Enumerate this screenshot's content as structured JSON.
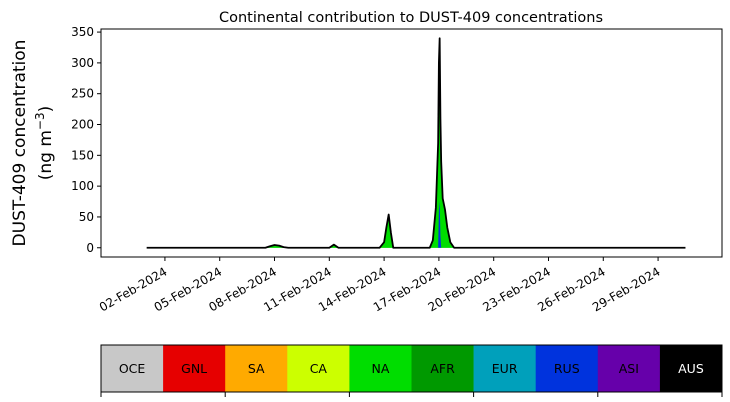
{
  "chart_data": {
    "type": "area",
    "title": "Continental contribution to DUST-409 concentrations",
    "ylabel_line1": "DUST-409 concentration",
    "ylabel_line2_prefix": "(ng m",
    "ylabel_line2_sup": "−3",
    "ylabel_line2_suffix": ")",
    "xlabel": "",
    "ylim": [
      -15,
      355
    ],
    "xlim": [
      "2024-01-29 12:00",
      "2024-03-03 12:00"
    ],
    "yticks": [
      0,
      50,
      100,
      150,
      200,
      250,
      300,
      350
    ],
    "xticks": [
      {
        "date": "2024-02-02",
        "label": "02-Feb-2024"
      },
      {
        "date": "2024-02-05",
        "label": "05-Feb-2024"
      },
      {
        "date": "2024-02-08",
        "label": "08-Feb-2024"
      },
      {
        "date": "2024-02-11",
        "label": "11-Feb-2024"
      },
      {
        "date": "2024-02-14",
        "label": "14-Feb-2024"
      },
      {
        "date": "2024-02-17",
        "label": "17-Feb-2024"
      },
      {
        "date": "2024-02-20",
        "label": "20-Feb-2024"
      },
      {
        "date": "2024-02-23",
        "label": "23-Feb-2024"
      },
      {
        "date": "2024-02-26",
        "label": "26-Feb-2024"
      },
      {
        "date": "2024-02-29",
        "label": "29-Feb-2024"
      }
    ],
    "series": [
      {
        "name": "AFR",
        "color": "#009900",
        "points": [
          [
            "2024-02-01 00:00",
            0
          ],
          [
            "2024-02-07 12:00",
            0
          ],
          [
            "2024-02-07 18:00",
            2
          ],
          [
            "2024-02-08 00:00",
            4
          ],
          [
            "2024-02-08 06:00",
            3
          ],
          [
            "2024-02-08 12:00",
            1
          ],
          [
            "2024-02-08 18:00",
            0
          ],
          [
            "2024-02-11 00:00",
            0
          ],
          [
            "2024-02-11 06:00",
            4
          ],
          [
            "2024-02-11 12:00",
            0
          ],
          [
            "2024-02-13 18:00",
            0
          ],
          [
            "2024-02-14 00:00",
            8
          ],
          [
            "2024-02-14 03:00",
            30
          ],
          [
            "2024-02-14 06:00",
            48
          ],
          [
            "2024-02-14 09:00",
            22
          ],
          [
            "2024-02-14 12:00",
            0
          ],
          [
            "2024-02-16 12:00",
            0
          ],
          [
            "2024-02-16 16:00",
            10
          ],
          [
            "2024-02-16 20:00",
            60
          ],
          [
            "2024-02-16 23:00",
            160
          ],
          [
            "2024-02-17 01:00",
            240
          ],
          [
            "2024-02-17 03:00",
            130
          ],
          [
            "2024-02-17 05:00",
            75
          ],
          [
            "2024-02-17 08:00",
            58
          ],
          [
            "2024-02-17 11:00",
            30
          ],
          [
            "2024-02-17 15:00",
            8
          ],
          [
            "2024-02-17 20:00",
            0
          ],
          [
            "2024-03-01 12:00",
            0
          ]
        ]
      },
      {
        "name": "NA",
        "color": "#00dd00",
        "points": [
          [
            "2024-02-01 00:00",
            0
          ],
          [
            "2024-02-07 12:00",
            0
          ],
          [
            "2024-02-07 18:00",
            2.5
          ],
          [
            "2024-02-08 00:00",
            4.5
          ],
          [
            "2024-02-08 06:00",
            3.5
          ],
          [
            "2024-02-08 12:00",
            1
          ],
          [
            "2024-02-08 18:00",
            0
          ],
          [
            "2024-02-11 00:00",
            0
          ],
          [
            "2024-02-11 06:00",
            5
          ],
          [
            "2024-02-11 12:00",
            0
          ],
          [
            "2024-02-13 18:00",
            0
          ],
          [
            "2024-02-14 00:00",
            9
          ],
          [
            "2024-02-14 03:00",
            33
          ],
          [
            "2024-02-14 06:00",
            52
          ],
          [
            "2024-02-14 09:00",
            24
          ],
          [
            "2024-02-14 12:00",
            0
          ],
          [
            "2024-02-16 12:00",
            0
          ],
          [
            "2024-02-16 16:00",
            12
          ],
          [
            "2024-02-16 20:00",
            65
          ],
          [
            "2024-02-16 23:00",
            170
          ],
          [
            "2024-02-17 01:00",
            255
          ],
          [
            "2024-02-17 03:00",
            140
          ],
          [
            "2024-02-17 05:00",
            80
          ],
          [
            "2024-02-17 08:00",
            62
          ],
          [
            "2024-02-17 11:00",
            33
          ],
          [
            "2024-02-17 15:00",
            9
          ],
          [
            "2024-02-17 20:00",
            0
          ],
          [
            "2024-03-01 12:00",
            0
          ]
        ]
      },
      {
        "name": "RUS",
        "color": "#0033dd",
        "points": [
          [
            "2024-02-01 00:00",
            0
          ],
          [
            "2024-02-16 23:00",
            0
          ],
          [
            "2024-02-17 00:00",
            60
          ],
          [
            "2024-02-17 01:00",
            75
          ],
          [
            "2024-02-17 02:00",
            20
          ],
          [
            "2024-02-17 03:00",
            0
          ],
          [
            "2024-03-01 12:00",
            0
          ]
        ]
      }
    ],
    "total": {
      "name": "Total",
      "color": "#000000",
      "points": [
        [
          "2024-02-01 00:00",
          0
        ],
        [
          "2024-02-07 12:00",
          0
        ],
        [
          "2024-02-07 18:00",
          2.5
        ],
        [
          "2024-02-08 00:00",
          4.5
        ],
        [
          "2024-02-08 06:00",
          3.5
        ],
        [
          "2024-02-08 12:00",
          1
        ],
        [
          "2024-02-08 18:00",
          0
        ],
        [
          "2024-02-11 00:00",
          0
        ],
        [
          "2024-02-11 06:00",
          5
        ],
        [
          "2024-02-11 12:00",
          0
        ],
        [
          "2024-02-13 18:00",
          0
        ],
        [
          "2024-02-14 00:00",
          9
        ],
        [
          "2024-02-14 03:00",
          33
        ],
        [
          "2024-02-14 06:00",
          54
        ],
        [
          "2024-02-14 09:00",
          24
        ],
        [
          "2024-02-14 12:00",
          0
        ],
        [
          "2024-02-16 12:00",
          0
        ],
        [
          "2024-02-16 16:00",
          12
        ],
        [
          "2024-02-16 20:00",
          65
        ],
        [
          "2024-02-16 23:00",
          170
        ],
        [
          "2024-02-17 00:00",
          300
        ],
        [
          "2024-02-17 01:00",
          340
        ],
        [
          "2024-02-17 02:00",
          210
        ],
        [
          "2024-02-17 03:00",
          140
        ],
        [
          "2024-02-17 05:00",
          80
        ],
        [
          "2024-02-17 08:00",
          62
        ],
        [
          "2024-02-17 11:00",
          33
        ],
        [
          "2024-02-17 15:00",
          9
        ],
        [
          "2024-02-17 20:00",
          0
        ],
        [
          "2024-03-01 12:00",
          0
        ]
      ]
    },
    "legend": [
      {
        "label": "OCE",
        "color": "#c8c8c8",
        "text_color": "#000000"
      },
      {
        "label": "GNL",
        "color": "#e60000",
        "text_color": "#000000"
      },
      {
        "label": "SA",
        "color": "#ffaa00",
        "text_color": "#000000"
      },
      {
        "label": "CA",
        "color": "#ccff00",
        "text_color": "#000000"
      },
      {
        "label": "NA",
        "color": "#00dd00",
        "text_color": "#000000"
      },
      {
        "label": "AFR",
        "color": "#009900",
        "text_color": "#000000"
      },
      {
        "label": "EUR",
        "color": "#00a0bb",
        "text_color": "#000000"
      },
      {
        "label": "RUS",
        "color": "#0033dd",
        "text_color": "#000000"
      },
      {
        "label": "ASI",
        "color": "#6600aa",
        "text_color": "#000000"
      },
      {
        "label": "AUS",
        "color": "#000000",
        "text_color": "#ffffff"
      }
    ],
    "grid": false,
    "legend_position": "bottom colorbar"
  }
}
